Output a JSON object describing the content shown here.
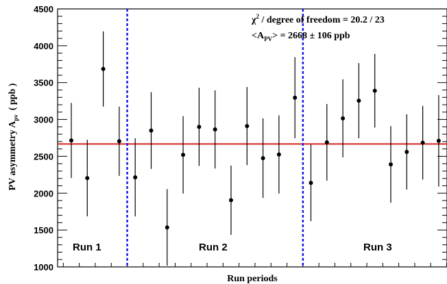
{
  "chart_data": {
    "type": "scatter",
    "title": "",
    "xlabel": "Run periods",
    "ylabel": "PV asymmetry A",
    "ylabel_sub": "pv",
    "ylabel_unit": "( ppb )",
    "ylim": [
      1000,
      4500
    ],
    "yticks": [
      1000,
      1500,
      2000,
      2500,
      3000,
      3500,
      4000,
      4500
    ],
    "grid": false,
    "series": [
      {
        "x": [
          1,
          2,
          3,
          4,
          5,
          6,
          7,
          8,
          9,
          10,
          11,
          12,
          13,
          14,
          15,
          16,
          17,
          18,
          19,
          20,
          21,
          22,
          23,
          24
        ],
        "values": [
          2715,
          2205,
          3685,
          2705,
          2215,
          2850,
          1535,
          2520,
          2900,
          2865,
          1905,
          2910,
          2475,
          2525,
          3295,
          2140,
          2690,
          3015,
          3255,
          3390,
          2390,
          2560,
          2685,
          2710
        ],
        "errors": [
          510,
          520,
          510,
          470,
          530,
          520,
          520,
          525,
          530,
          530,
          470,
          530,
          540,
          530,
          550,
          520,
          520,
          530,
          510,
          500,
          520,
          510,
          500,
          620
        ]
      }
    ],
    "fit_line": 2668,
    "run_dividers_after": [
      4,
      15
    ],
    "colors": {
      "points": "#000000",
      "fit": "#d42020",
      "dividers": "#1a1ae6"
    }
  },
  "annotations": {
    "chi2_symbol": "χ",
    "chi2_text": " / degree of freedom = 20.2 / 23",
    "apv_open": "<A",
    "apv_sub": "PV",
    "apv_rest": "> = 2668  ± 106 ppb"
  },
  "runs": [
    "Run 1",
    "Run 2",
    "Run 3"
  ]
}
